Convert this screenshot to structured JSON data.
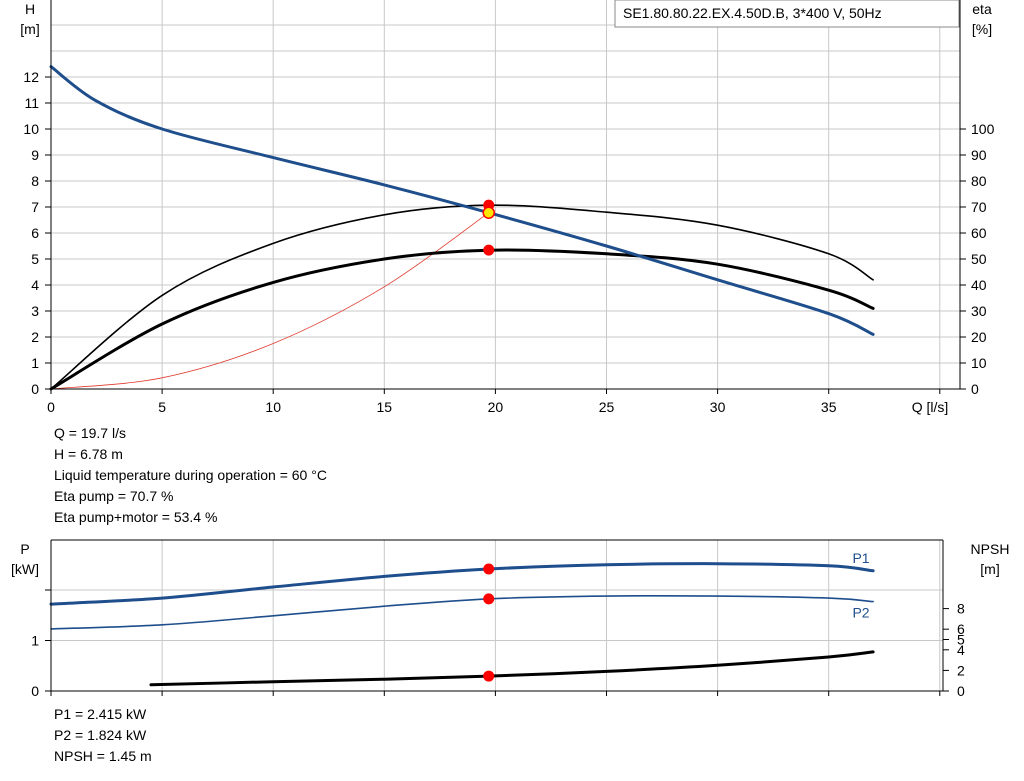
{
  "chart_data": [
    {
      "type": "line",
      "title": "SE1.80.80.22.EX.4.50D.B, 3*400  V, 50Hz",
      "xlabel": "Q [l/s]",
      "ylabel_left": [
        "H",
        "[m]"
      ],
      "ylabel_right": [
        "eta",
        "[%]"
      ],
      "xlim": [
        0,
        40
      ],
      "ylim_left": [
        0,
        13.5
      ],
      "ylim_right": [
        0,
        135
      ],
      "x_ticks": [
        "0",
        "5",
        "10",
        "15",
        "20",
        "25",
        "30",
        "35"
      ],
      "y_ticks_left": [
        "0",
        "1",
        "2",
        "3",
        "4",
        "5",
        "6",
        "7",
        "8",
        "9",
        "10",
        "11",
        "12"
      ],
      "y_ticks_right": [
        "0",
        "10",
        "20",
        "30",
        "40",
        "50",
        "60",
        "70",
        "80",
        "90",
        "100"
      ],
      "grid": true,
      "series": [
        {
          "key": "head",
          "axis": "left",
          "color": "#1f4e8c",
          "x": [
            0,
            2,
            5,
            10,
            15,
            19.7,
            25,
            30,
            35,
            37
          ],
          "y": [
            12.4,
            11.1,
            10.0,
            8.9,
            7.85,
            6.78,
            5.5,
            4.2,
            2.9,
            2.1
          ]
        },
        {
          "key": "eta_pump",
          "axis": "right",
          "color": "#000000",
          "x": [
            0,
            5,
            10,
            15,
            19.7,
            25,
            30,
            35,
            37
          ],
          "y": [
            0,
            36,
            56,
            67,
            70.7,
            68,
            63,
            52,
            42
          ]
        },
        {
          "key": "eta_pump_motor",
          "axis": "right",
          "color": "#000000",
          "x": [
            0,
            5,
            10,
            15,
            19.7,
            25,
            30,
            35,
            37
          ],
          "y": [
            0,
            25,
            41,
            50,
            53.4,
            52,
            48,
            38,
            31
          ]
        },
        {
          "key": "system_curve",
          "axis": "left",
          "color": "#e03a2e",
          "x": [
            0,
            5,
            10,
            15,
            19.7
          ],
          "y": [
            0,
            0.43,
            1.75,
            3.93,
            6.78
          ]
        }
      ],
      "operating_points": [
        {
          "series": "eta_pump",
          "x": 19.7,
          "y": 70.7
        },
        {
          "series": "head",
          "x": 19.7,
          "y": 6.78
        },
        {
          "series": "eta_pump_motor",
          "x": 19.7,
          "y": 53.4
        }
      ],
      "info_lines": [
        "Q = 19.7 l/s",
        "H = 6.78 m",
        "Liquid temperature during operation = 60 °C",
        "Eta pump = 70.7 %",
        "Eta pump+motor = 53.4 %"
      ]
    },
    {
      "type": "line",
      "xlim": [
        0,
        40
      ],
      "ylabel_left": [
        "P",
        "[kW]"
      ],
      "ylabel_right": [
        "NPSH",
        "[m]"
      ],
      "ylim_left": [
        0,
        2.85
      ],
      "ylim_right": [
        0,
        14
      ],
      "y_ticks_left": [
        "0",
        "1"
      ],
      "y_ticks_right": [
        "0",
        "2",
        "4",
        "5",
        "6",
        "8"
      ],
      "grid": true,
      "series": [
        {
          "key": "p1",
          "name": "P1",
          "axis": "left",
          "color": "#1f4e8c",
          "x": [
            0,
            5,
            10,
            15,
            19.7,
            25,
            30,
            35,
            37
          ],
          "y": [
            1.72,
            1.84,
            2.06,
            2.27,
            2.415,
            2.5,
            2.52,
            2.48,
            2.38
          ]
        },
        {
          "key": "p2",
          "name": "P2",
          "axis": "left",
          "color": "#1f4e8c",
          "x": [
            0,
            5,
            10,
            15,
            19.7,
            25,
            30,
            35,
            37
          ],
          "y": [
            1.23,
            1.31,
            1.49,
            1.68,
            1.824,
            1.88,
            1.88,
            1.84,
            1.77
          ]
        },
        {
          "key": "npsh",
          "axis": "right",
          "color": "#000000",
          "x": [
            4.5,
            10,
            15,
            19.7,
            25,
            30,
            35,
            37
          ],
          "y": [
            0.6,
            0.9,
            1.15,
            1.45,
            1.9,
            2.5,
            3.3,
            3.8
          ]
        }
      ],
      "operating_points": [
        {
          "series": "p1",
          "x": 19.7,
          "y": 2.415
        },
        {
          "series": "p2",
          "x": 19.7,
          "y": 1.824
        },
        {
          "series": "npsh",
          "x": 19.7,
          "y": 1.45
        }
      ],
      "info_lines": [
        "P1 = 2.415 kW",
        "P2 = 1.824 kW",
        "NPSH = 1.45 m"
      ]
    }
  ],
  "colors": {
    "pump_blue": "#1f4e8c",
    "operating_point": "#ff0000",
    "operating_point_highlight": "#ffe600",
    "system_curve": "#e03a2e",
    "grid": "#c8c8c8"
  }
}
